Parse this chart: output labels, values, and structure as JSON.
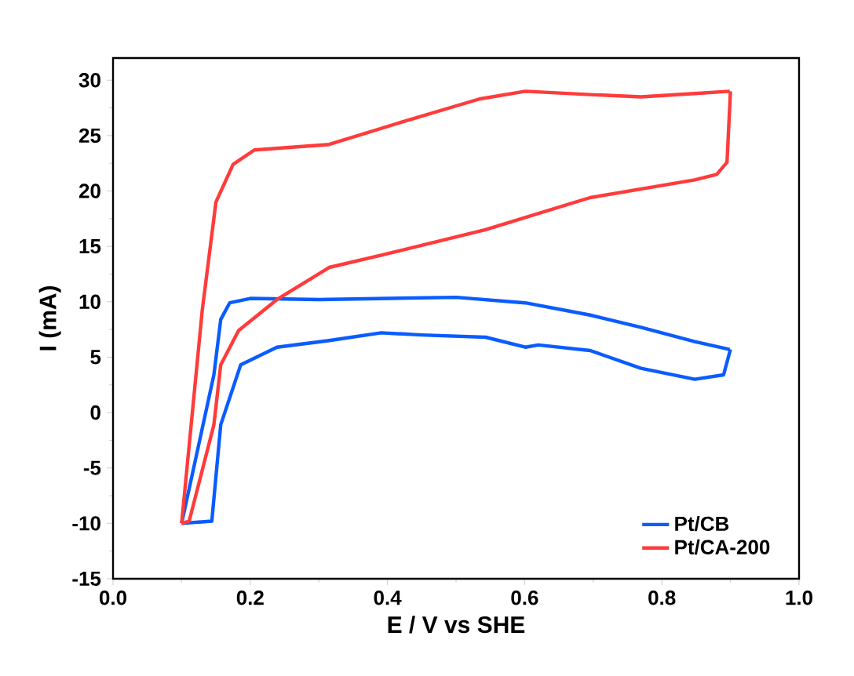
{
  "chart_data": {
    "type": "line",
    "xlabel": "E / V vs SHE",
    "ylabel": "I (mA)",
    "xlim": [
      0,
      1
    ],
    "ylim": [
      -15,
      32
    ],
    "xticks": [
      {
        "value": 0,
        "label": "0.0"
      },
      {
        "value": 0.2,
        "label": "0.2"
      },
      {
        "value": 0.4,
        "label": "0.4"
      },
      {
        "value": 0.6,
        "label": "0.6"
      },
      {
        "value": 0.8,
        "label": "0.8"
      },
      {
        "value": 1,
        "label": "1.0"
      }
    ],
    "yticks": [
      -15,
      -10,
      -5,
      0,
      5,
      10,
      15,
      20,
      25,
      30
    ],
    "legend": "bottom right",
    "grid": false,
    "marker": "none",
    "line_style": "solid",
    "series": [
      {
        "name": "Pt/CB",
        "color": "#0a5cff",
        "x": [
          0.1,
          0.147,
          0.157,
          0.17,
          0.2,
          0.3,
          0.4,
          0.5,
          0.601,
          0.6955,
          0.7695,
          0.848,
          0.899
        ],
        "values": [
          -10,
          3.4,
          8.4,
          9.9,
          10.3,
          10.2,
          10.3,
          10.4,
          9.9,
          8.8,
          7.7,
          6.4,
          5.7
        ]
      },
      {
        "color": "#0a5cff",
        "x": [
          0.9,
          0.89,
          0.848,
          0.7695,
          0.6955,
          0.62,
          0.601,
          0.543,
          0.45,
          0.391,
          0.315,
          0.239,
          0.186,
          0.157,
          0.144,
          0.1
        ],
        "values": [
          5.7,
          3.4,
          3.0,
          4.0,
          5.6,
          6.1,
          5.9,
          6.8,
          7.0,
          7.2,
          6.5,
          5.9,
          4.3,
          -1.1,
          -9.8,
          -10
        ]
      },
      {
        "name": "Pt/CA-200",
        "color": "#ff3b3b",
        "x": [
          0.1,
          0.13,
          0.15,
          0.175,
          0.206,
          0.315,
          0.42,
          0.534,
          0.601,
          0.6955,
          0.7695,
          0.848,
          0.899
        ],
        "values": [
          -10,
          9.2,
          19,
          22.4,
          23.7,
          24.2,
          26.2,
          28.3,
          29.0,
          28.7,
          28.5,
          28.8,
          29
        ]
      },
      {
        "color": "#ff3b3b",
        "x": [
          0.9,
          0.895,
          0.88,
          0.848,
          0.6955,
          0.543,
          0.391,
          0.315,
          0.239,
          0.183,
          0.157,
          0.147,
          0.111,
          0.1
        ],
        "values": [
          29,
          22.6,
          21.5,
          21,
          19.4,
          16.5,
          14.2,
          13.1,
          10.2,
          7.4,
          4.3,
          -1.1,
          -9.8,
          -10
        ]
      }
    ]
  }
}
